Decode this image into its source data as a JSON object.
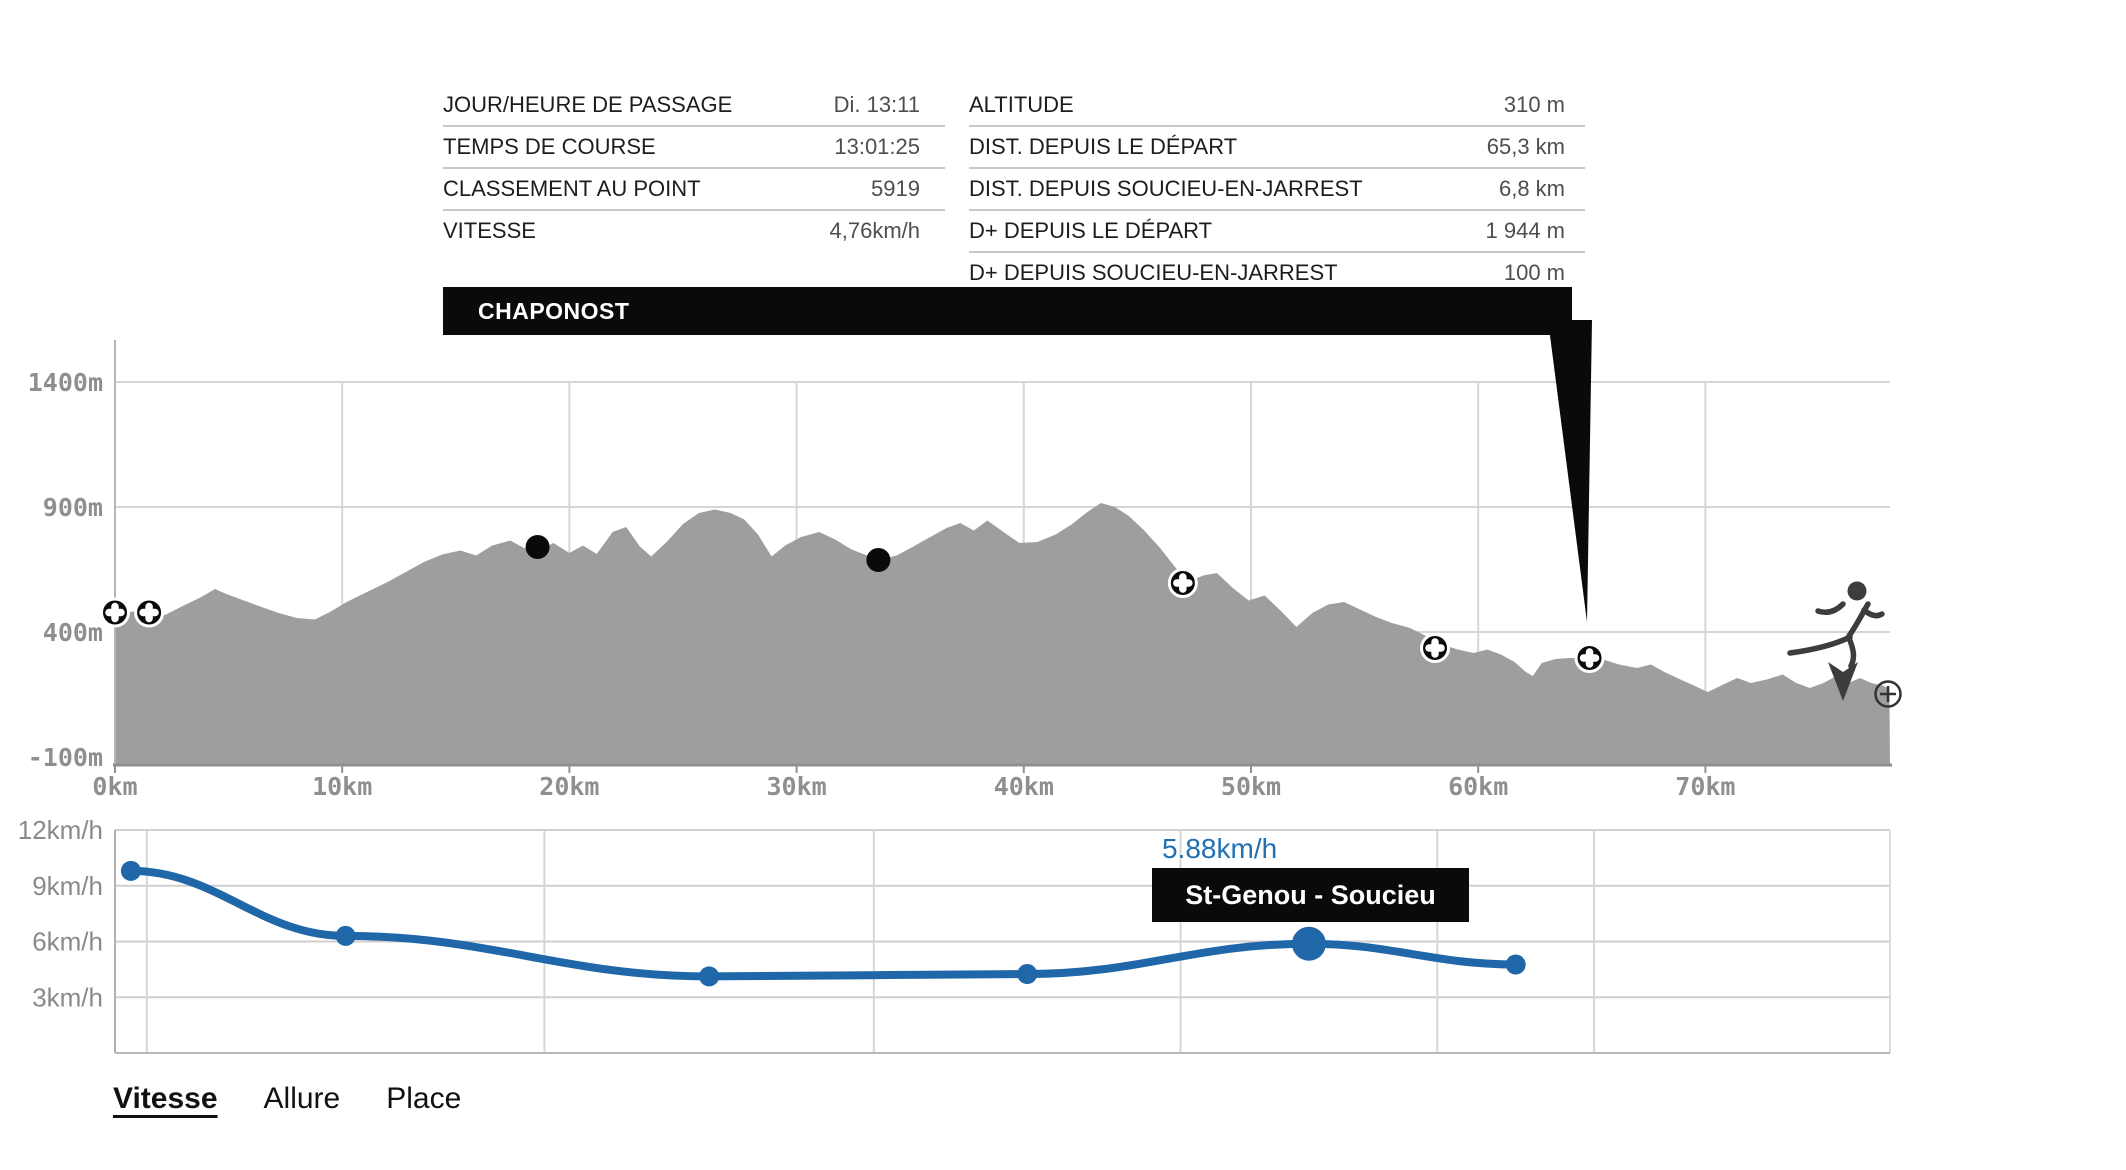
{
  "header_tables": {
    "left": {
      "rows": [
        {
          "label": "JOUR/HEURE DE PASSAGE",
          "value": "Di. 13:11"
        },
        {
          "label": "TEMPS DE COURSE",
          "value": "13:01:25"
        },
        {
          "label": "CLASSEMENT AU POINT",
          "value": "5919"
        },
        {
          "label": "VITESSE",
          "value": "4,76km/h"
        }
      ]
    },
    "right": {
      "rows": [
        {
          "label": "ALTITUDE",
          "value": "310 m"
        },
        {
          "label": "DIST. DEPUIS LE DÉPART",
          "value": "65,3 km"
        },
        {
          "label": "DIST. DEPUIS SOUCIEU-EN-JARREST",
          "value": "6,8 km"
        },
        {
          "label": "D+ DEPUIS LE DÉPART",
          "value": "1 944 m"
        },
        {
          "label": "D+ DEPUIS SOUCIEU-EN-JARREST",
          "value": "100 m"
        }
      ]
    }
  },
  "checkpoint_callout": {
    "label": "CHAPONOST"
  },
  "speed_tooltip": {
    "value_label": "5.88km/h",
    "name": "St-Genou - Soucieu"
  },
  "tabs": [
    {
      "label": "Vitesse",
      "active": true
    },
    {
      "label": "Allure",
      "active": false
    },
    {
      "label": "Place",
      "active": false
    }
  ],
  "colors": {
    "accent_blue": "#1f67a8",
    "value_blue": "#2270b2",
    "area_gray": "#9e9e9e",
    "callout_black": "#0a0a0a"
  },
  "icons": [
    "checkpoint-cross-icon",
    "waypoint-dot-icon",
    "runner-icon",
    "position-arrow-icon",
    "zoom-in-icon"
  ],
  "chart_data": [
    {
      "type": "area",
      "name": "elevation-profile",
      "ylabel": "altitude",
      "xlabel": "distance",
      "ylim": [
        -100,
        1400
      ],
      "y_axis": {
        "ticks": [
          {
            "label": "1400m",
            "alt": 1400
          },
          {
            "label": "900m",
            "alt": 900
          },
          {
            "label": "400m",
            "alt": 400
          },
          {
            "label": "-100m",
            "alt": -100
          }
        ]
      },
      "x_axis": {
        "ticks": [
          {
            "label": "0km",
            "km": 0
          },
          {
            "label": "10km",
            "km": 10
          },
          {
            "label": "20km",
            "km": 20
          },
          {
            "label": "30km",
            "km": 30
          },
          {
            "label": "40km",
            "km": 40
          },
          {
            "label": "50km",
            "km": 50
          },
          {
            "label": "60km",
            "km": 60
          },
          {
            "label": "70km",
            "km": 70
          }
        ]
      },
      "grid": true,
      "profile_km_alt": [
        [
          0,
          470
        ],
        [
          0.8,
          482
        ],
        [
          1.5,
          478
        ],
        [
          2.2,
          468
        ],
        [
          3,
          505
        ],
        [
          3.8,
          540
        ],
        [
          4.4,
          572
        ],
        [
          4.9,
          552
        ],
        [
          5.5,
          532
        ],
        [
          6.3,
          505
        ],
        [
          7.2,
          476
        ],
        [
          8,
          456
        ],
        [
          8.8,
          450
        ],
        [
          9.5,
          482
        ],
        [
          10.2,
          520
        ],
        [
          11,
          556
        ],
        [
          12,
          600
        ],
        [
          12.8,
          640
        ],
        [
          13.6,
          680
        ],
        [
          14.4,
          710
        ],
        [
          15.2,
          726
        ],
        [
          15.9,
          706
        ],
        [
          16.6,
          746
        ],
        [
          17.4,
          766
        ],
        [
          18,
          736
        ],
        [
          18.6,
          722
        ],
        [
          19.3,
          756
        ],
        [
          20,
          716
        ],
        [
          20.6,
          746
        ],
        [
          21.2,
          712
        ],
        [
          21.9,
          800
        ],
        [
          22.5,
          820
        ],
        [
          23.1,
          742
        ],
        [
          23.6,
          702
        ],
        [
          24.3,
          762
        ],
        [
          25,
          832
        ],
        [
          25.7,
          876
        ],
        [
          26.4,
          890
        ],
        [
          27.1,
          876
        ],
        [
          27.7,
          850
        ],
        [
          28.3,
          790
        ],
        [
          28.9,
          702
        ],
        [
          29.5,
          746
        ],
        [
          30.2,
          780
        ],
        [
          31,
          800
        ],
        [
          31.7,
          770
        ],
        [
          32.4,
          731
        ],
        [
          33.1,
          706
        ],
        [
          33.7,
          690
        ],
        [
          34.4,
          706
        ],
        [
          35.1,
          740
        ],
        [
          35.8,
          776
        ],
        [
          36.6,
          816
        ],
        [
          37.2,
          836
        ],
        [
          37.8,
          806
        ],
        [
          38.4,
          846
        ],
        [
          39.1,
          800
        ],
        [
          39.8,
          756
        ],
        [
          40.6,
          760
        ],
        [
          41.4,
          790
        ],
        [
          42.1,
          830
        ],
        [
          42.8,
          880
        ],
        [
          43.4,
          916
        ],
        [
          44,
          900
        ],
        [
          44.6,
          866
        ],
        [
          45.3,
          806
        ],
        [
          46,
          736
        ],
        [
          46.6,
          666
        ],
        [
          47.2,
          600
        ],
        [
          47.9,
          626
        ],
        [
          48.5,
          636
        ],
        [
          49.2,
          576
        ],
        [
          49.9,
          526
        ],
        [
          50.6,
          546
        ],
        [
          51.3,
          486
        ],
        [
          52,
          420
        ],
        [
          52.7,
          476
        ],
        [
          53.4,
          510
        ],
        [
          54.1,
          520
        ],
        [
          54.8,
          490
        ],
        [
          55.5,
          460
        ],
        [
          56.2,
          436
        ],
        [
          57,
          416
        ],
        [
          57.8,
          380
        ],
        [
          58.4,
          350
        ],
        [
          59.1,
          330
        ],
        [
          59.8,
          316
        ],
        [
          60.4,
          330
        ],
        [
          61,
          310
        ],
        [
          61.6,
          280
        ],
        [
          62.1,
          240
        ],
        [
          62.4,
          224
        ],
        [
          62.8,
          276
        ],
        [
          63.4,
          292
        ],
        [
          64,
          296
        ],
        [
          64.8,
          296
        ],
        [
          65.5,
          290
        ],
        [
          66.2,
          270
        ],
        [
          67,
          256
        ],
        [
          67.6,
          270
        ],
        [
          68.2,
          240
        ],
        [
          68.9,
          210
        ],
        [
          69.5,
          186
        ],
        [
          70.1,
          160
        ],
        [
          70.7,
          186
        ],
        [
          71.4,
          216
        ],
        [
          72,
          196
        ],
        [
          72.7,
          210
        ],
        [
          73.4,
          230
        ],
        [
          74,
          196
        ],
        [
          74.6,
          176
        ],
        [
          75.2,
          196
        ],
        [
          75.8,
          226
        ],
        [
          76.3,
          196
        ],
        [
          76.8,
          216
        ],
        [
          77.3,
          196
        ],
        [
          77.8,
          186
        ],
        [
          78.1,
          172
        ]
      ],
      "checkpoints_cross_km_alt": [
        [
          0,
          478
        ],
        [
          1.5,
          478
        ],
        [
          47,
          596
        ],
        [
          58.1,
          336
        ],
        [
          64.9,
          296
        ]
      ],
      "waypoints_dot_km_alt": [
        [
          18.6,
          740
        ],
        [
          33.6,
          688
        ]
      ],
      "annotation": {
        "label": "CHAPONOST",
        "points_to_km": 64.9
      }
    },
    {
      "type": "line",
      "name": "speed-by-segment",
      "ylabel": "km/h",
      "ylim": [
        0,
        12
      ],
      "grid": true,
      "y_axis": {
        "ticks": [
          {
            "label": "12km/h",
            "v": 12
          },
          {
            "label": "9km/h",
            "v": 9
          },
          {
            "label": "6km/h",
            "v": 6
          },
          {
            "label": "3km/h",
            "v": 3
          }
        ]
      },
      "segment_boundaries_km": [
        0,
        1.4,
        18.9,
        33.4,
        46.9,
        58.2,
        65.1
      ],
      "values": [
        9.8,
        6.3,
        4.12,
        4.25,
        5.88,
        4.76
      ],
      "highlight": {
        "index": 4,
        "value_label": "5.88km/h",
        "segment_name": "St-Genou - Soucieu"
      },
      "legend": "none"
    }
  ]
}
